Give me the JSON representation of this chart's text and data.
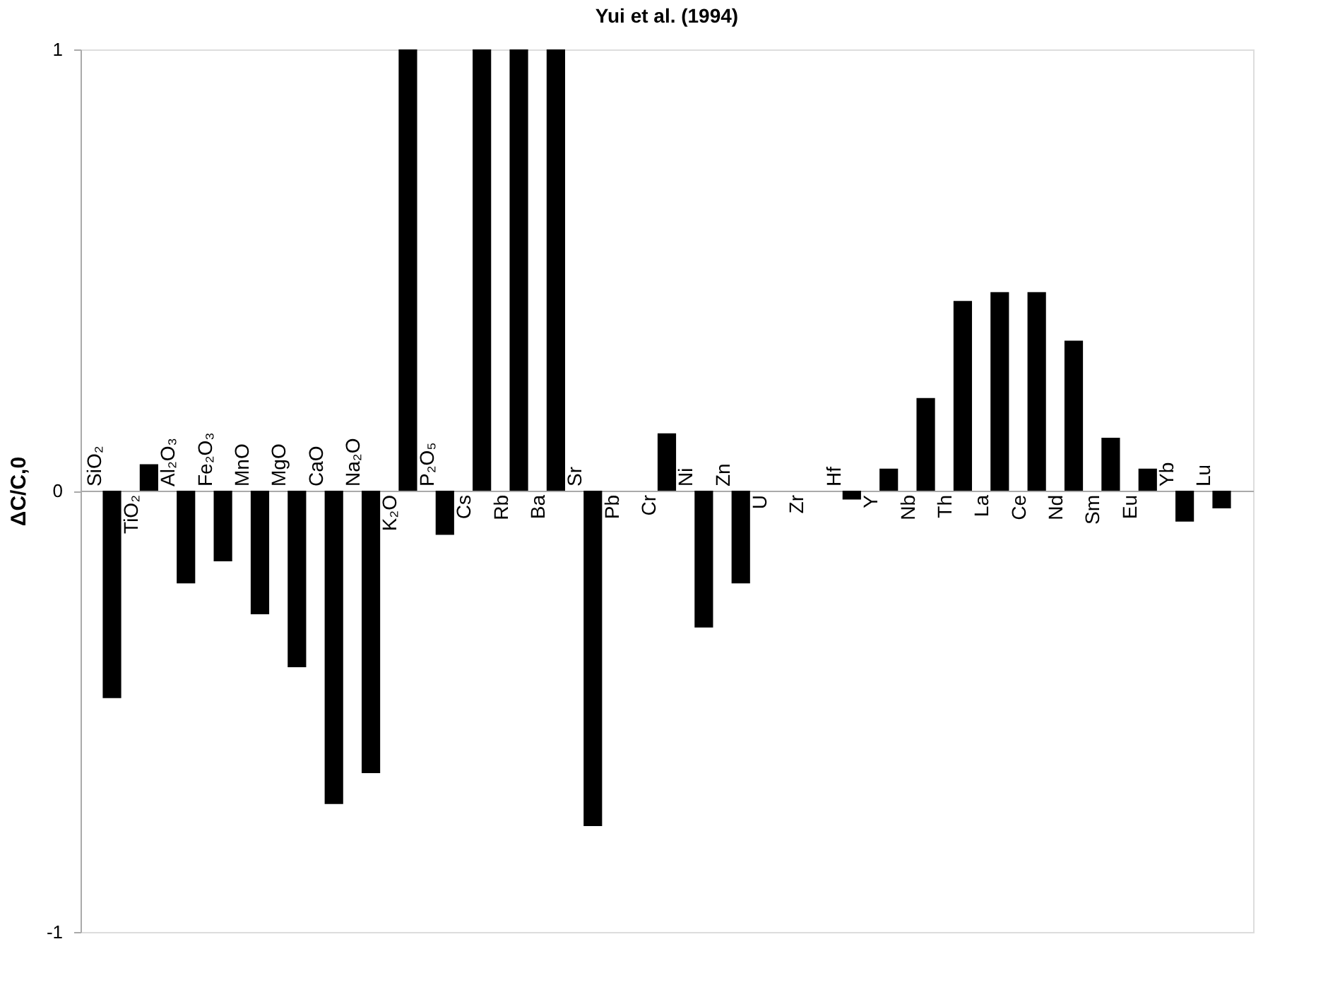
{
  "chart_data": {
    "type": "bar",
    "title": "Yui et al. (1994)",
    "ylabel": "ΔC/C,0",
    "categories": [
      "SiO₂",
      "TiO₂",
      "Al₂O₃",
      "Fe₂O₃",
      "MnO",
      "MgO",
      "CaO",
      "Na₂O",
      "K₂O",
      "P₂O₅",
      "Cs",
      "Rb",
      "Ba",
      "Sr",
      "Pb",
      "Cr",
      "Ni",
      "Zn",
      "U",
      "Zr",
      "Hf",
      "Y",
      "Nb",
      "Th",
      "La",
      "Ce",
      "Nd",
      "Sm",
      "Eu",
      "Yb",
      "Lu"
    ],
    "values": [
      -0.47,
      0.06,
      -0.21,
      -0.16,
      -0.28,
      -0.4,
      -0.71,
      -0.64,
      1,
      -0.1,
      1,
      1,
      1,
      -0.76,
      0,
      0.13,
      -0.31,
      -0.21,
      0,
      0,
      -0.02,
      0.05,
      0.21,
      0.43,
      0.45,
      0.45,
      0.34,
      0.12,
      0.05,
      -0.07,
      -0.04
    ],
    "color": "#000000",
    "ylim": [
      -1,
      1
    ],
    "yticks": [
      -1,
      0,
      1
    ]
  }
}
